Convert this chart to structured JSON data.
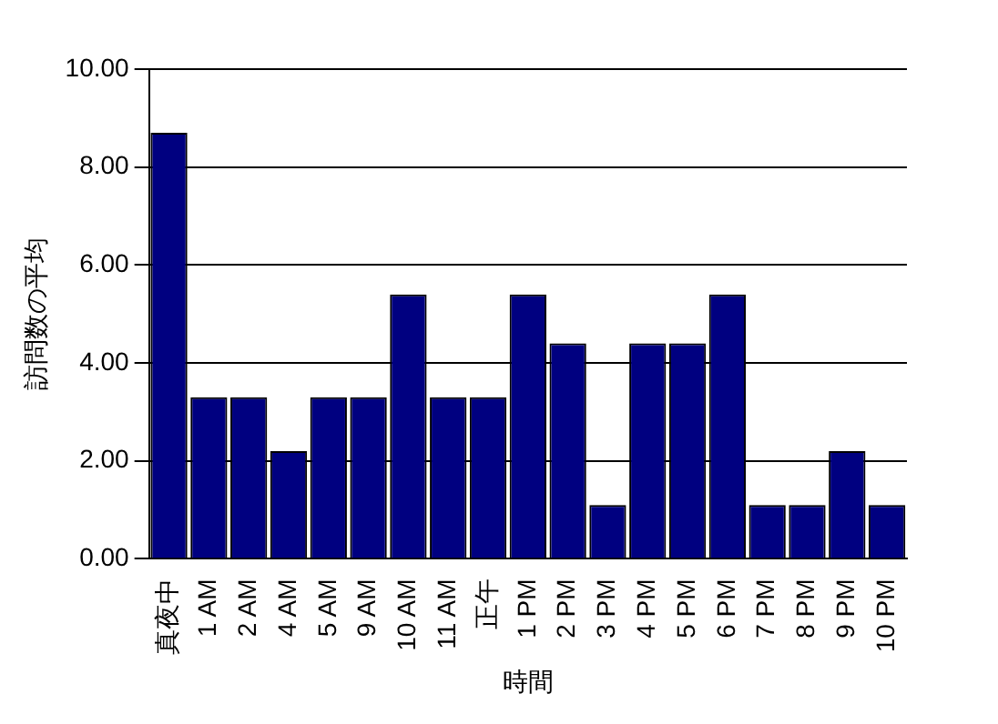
{
  "chart_data": {
    "type": "bar",
    "xlabel": "時間",
    "ylabel": "訪問数の平均",
    "categories": [
      "真夜中",
      "1 AM",
      "2 AM",
      "4 AM",
      "5 AM",
      "9 AM",
      "10 AM",
      "11 AM",
      "正午",
      "1 PM",
      "2 PM",
      "3 PM",
      "4 PM",
      "5 PM",
      "6 PM",
      "7 PM",
      "8 PM",
      "9 PM",
      "10 PM"
    ],
    "values": [
      8.7,
      3.3,
      3.3,
      2.2,
      3.3,
      3.3,
      5.4,
      3.3,
      3.3,
      5.4,
      4.4,
      1.1,
      4.4,
      4.4,
      5.4,
      1.1,
      1.1,
      2.2,
      1.1
    ],
    "color": "#000080",
    "ylim": [
      0,
      10
    ],
    "yticks": [
      {
        "value": 0,
        "label": "0.00"
      },
      {
        "value": 2,
        "label": "2.00"
      },
      {
        "value": 4,
        "label": "4.00"
      },
      {
        "value": 6,
        "label": "6.00"
      },
      {
        "value": 8,
        "label": "8.00"
      },
      {
        "value": 10,
        "label": "10.00"
      }
    ],
    "grid": "y"
  }
}
